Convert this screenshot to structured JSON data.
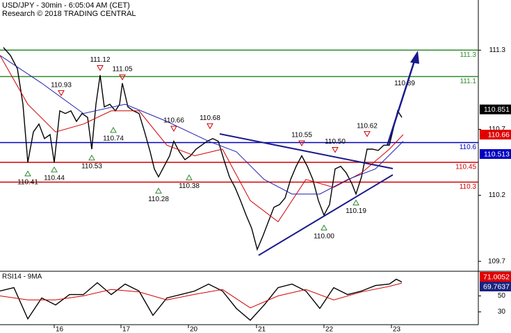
{
  "chart_data": [
    {
      "type": "line",
      "title": "USD/JPY - 30min - 6:05:04 AM (CET)",
      "subtitle": "Research © 2018 TRADING CENTRAL",
      "xlim": [
        0,
        688
      ],
      "ylim": [
        109.63,
        111.68
      ],
      "yticks": [
        111.3,
        110.7,
        110.2,
        109.7
      ],
      "series": [
        {
          "color": "#000000",
          "x": [
            5,
            15,
            25,
            33,
            40,
            48,
            56,
            64,
            72,
            78,
            86,
            94,
            102,
            110,
            118,
            126,
            132,
            138,
            144,
            150,
            158,
            166,
            172,
            176,
            184,
            192,
            200,
            208,
            216,
            222,
            228,
            236,
            244,
            250,
            258,
            266,
            274,
            282,
            290,
            298,
            306,
            314,
            322,
            330,
            338,
            346,
            354,
            362,
            370,
            378,
            386,
            394,
            402,
            410,
            418,
            426,
            434,
            442,
            450,
            458,
            466,
            474,
            482,
            490,
            498,
            506,
            512,
            520,
            528,
            536,
            544,
            552,
            560,
            566,
            572,
            578
          ],
          "values": [
            111.32,
            111.26,
            111.16,
            110.89,
            110.45,
            110.68,
            110.74,
            110.63,
            110.66,
            110.45,
            110.84,
            110.82,
            110.84,
            110.76,
            110.82,
            110.79,
            110.55,
            110.89,
            111.11,
            110.87,
            110.89,
            110.84,
            110.89,
            111.05,
            110.87,
            110.84,
            110.82,
            110.68,
            110.53,
            110.4,
            110.34,
            110.42,
            110.5,
            110.61,
            110.53,
            110.47,
            110.5,
            110.55,
            110.58,
            110.61,
            110.63,
            110.61,
            110.47,
            110.34,
            110.26,
            110.16,
            110.05,
            109.95,
            109.79,
            109.89,
            110.0,
            110.11,
            110.13,
            110.18,
            110.32,
            110.42,
            110.5,
            110.42,
            110.32,
            110.16,
            110.05,
            110.13,
            110.4,
            110.42,
            110.37,
            110.29,
            110.21,
            110.34,
            110.55,
            110.55,
            110.54,
            110.58,
            110.58,
            110.71,
            110.84,
            110.79
          ]
        },
        {
          "color": "#d00000",
          "x": [
            0,
            40,
            80,
            120,
            160,
            200,
            240,
            280,
            320,
            360,
            400,
            440,
            480,
            520,
            560,
            580
          ],
          "values": [
            111.26,
            110.89,
            110.68,
            110.74,
            110.84,
            110.84,
            110.58,
            110.5,
            110.55,
            110.16,
            110.0,
            110.32,
            110.26,
            110.37,
            110.55,
            110.66
          ]
        },
        {
          "color": "#2020b0",
          "x": [
            0,
            60,
            120,
            180,
            240,
            300,
            340,
            380,
            420,
            460,
            500,
            540,
            580
          ],
          "values": [
            111.26,
            111.05,
            110.82,
            110.89,
            110.76,
            110.61,
            110.53,
            110.32,
            110.21,
            110.21,
            110.32,
            110.4,
            110.61
          ]
        }
      ],
      "levels": [
        {
          "value": 111.3,
          "color": "#2e8b2e"
        },
        {
          "value": 111.1,
          "color": "#2e8b2e"
        },
        {
          "value": 110.6,
          "color": "#0000c0"
        },
        {
          "value": 110.45,
          "color": "#d00000"
        },
        {
          "value": 110.3,
          "color": "#d00000"
        }
      ],
      "annotations": [
        {
          "x": 40,
          "value": 110.41,
          "label": "110.41",
          "kind": "low"
        },
        {
          "x": 78,
          "value": 110.44,
          "label": "110.44",
          "kind": "low"
        },
        {
          "x": 88,
          "value": 110.93,
          "label": "110.93",
          "kind": "high"
        },
        {
          "x": 132,
          "value": 110.53,
          "label": "110.53",
          "kind": "low"
        },
        {
          "x": 144,
          "value": 111.12,
          "label": "111.12",
          "kind": "high"
        },
        {
          "x": 163,
          "value": 110.74,
          "label": "110.74",
          "kind": "low"
        },
        {
          "x": 176,
          "value": 111.05,
          "label": "111.05",
          "kind": "high"
        },
        {
          "x": 228,
          "value": 110.28,
          "label": "110.28",
          "kind": "low"
        },
        {
          "x": 250,
          "value": 110.66,
          "label": "110.66",
          "kind": "high"
        },
        {
          "x": 272,
          "value": 110.38,
          "label": "110.38",
          "kind": "low"
        },
        {
          "x": 302,
          "value": 110.68,
          "label": "110.68",
          "kind": "high"
        },
        {
          "x": 434,
          "value": 110.55,
          "label": "110.55",
          "kind": "high"
        },
        {
          "x": 466,
          "value": 110.0,
          "label": "110.00",
          "kind": "low"
        },
        {
          "x": 482,
          "value": 110.5,
          "label": "110.50",
          "kind": "high"
        },
        {
          "x": 512,
          "value": 110.19,
          "label": "110.19",
          "kind": "low"
        },
        {
          "x": 528,
          "value": 110.62,
          "label": "110.62",
          "kind": "high"
        },
        {
          "x": 582,
          "value": 110.89,
          "label": "110.89",
          "kind": "target"
        }
      ],
      "price_tags": [
        {
          "value": 110.851,
          "color": "#000000"
        },
        {
          "value": 110.66,
          "color": "#e00000"
        },
        {
          "value": 110.513,
          "color": "#0000c0"
        }
      ]
    },
    {
      "type": "line",
      "title": "RSI14 - 9MA",
      "xlim": [
        0,
        688
      ],
      "ylim": [
        14,
        80
      ],
      "yticks": [
        50,
        30
      ],
      "xticks": [
        {
          "value": 78,
          "label": "16"
        },
        {
          "value": 174,
          "label": "17"
        },
        {
          "value": 271,
          "label": "20"
        },
        {
          "value": 369,
          "label": "21"
        },
        {
          "value": 466,
          "label": "22"
        },
        {
          "value": 563,
          "label": "23"
        }
      ],
      "series": [
        {
          "color": "#000000",
          "x": [
            0,
            20,
            40,
            60,
            80,
            100,
            120,
            140,
            160,
            180,
            200,
            220,
            240,
            260,
            280,
            300,
            320,
            340,
            360,
            380,
            400,
            420,
            440,
            460,
            480,
            500,
            520,
            540,
            560,
            570,
            578
          ],
          "values": [
            56.1,
            60.4,
            21.3,
            47.4,
            38.7,
            51.7,
            51.7,
            66.5,
            51.7,
            64.8,
            56.1,
            25.7,
            47.4,
            51.7,
            56.1,
            64.8,
            56.1,
            34.3,
            19.6,
            38.7,
            60.4,
            64.8,
            56.1,
            34.3,
            60.4,
            51.7,
            56.1,
            63.0,
            64.8,
            70.9,
            67.4
          ]
        },
        {
          "color": "#d00000",
          "x": [
            0,
            40,
            80,
            120,
            160,
            200,
            240,
            280,
            320,
            360,
            400,
            440,
            480,
            520,
            560,
            578
          ],
          "values": [
            50,
            45,
            45,
            50,
            58,
            55,
            45,
            52,
            58,
            35,
            50,
            58,
            45,
            55,
            62,
            66
          ]
        }
      ],
      "price_tags": [
        {
          "value": 71.0052,
          "color": "#e00000"
        },
        {
          "value": 69.7637,
          "color": "#1a237e"
        }
      ]
    }
  ]
}
